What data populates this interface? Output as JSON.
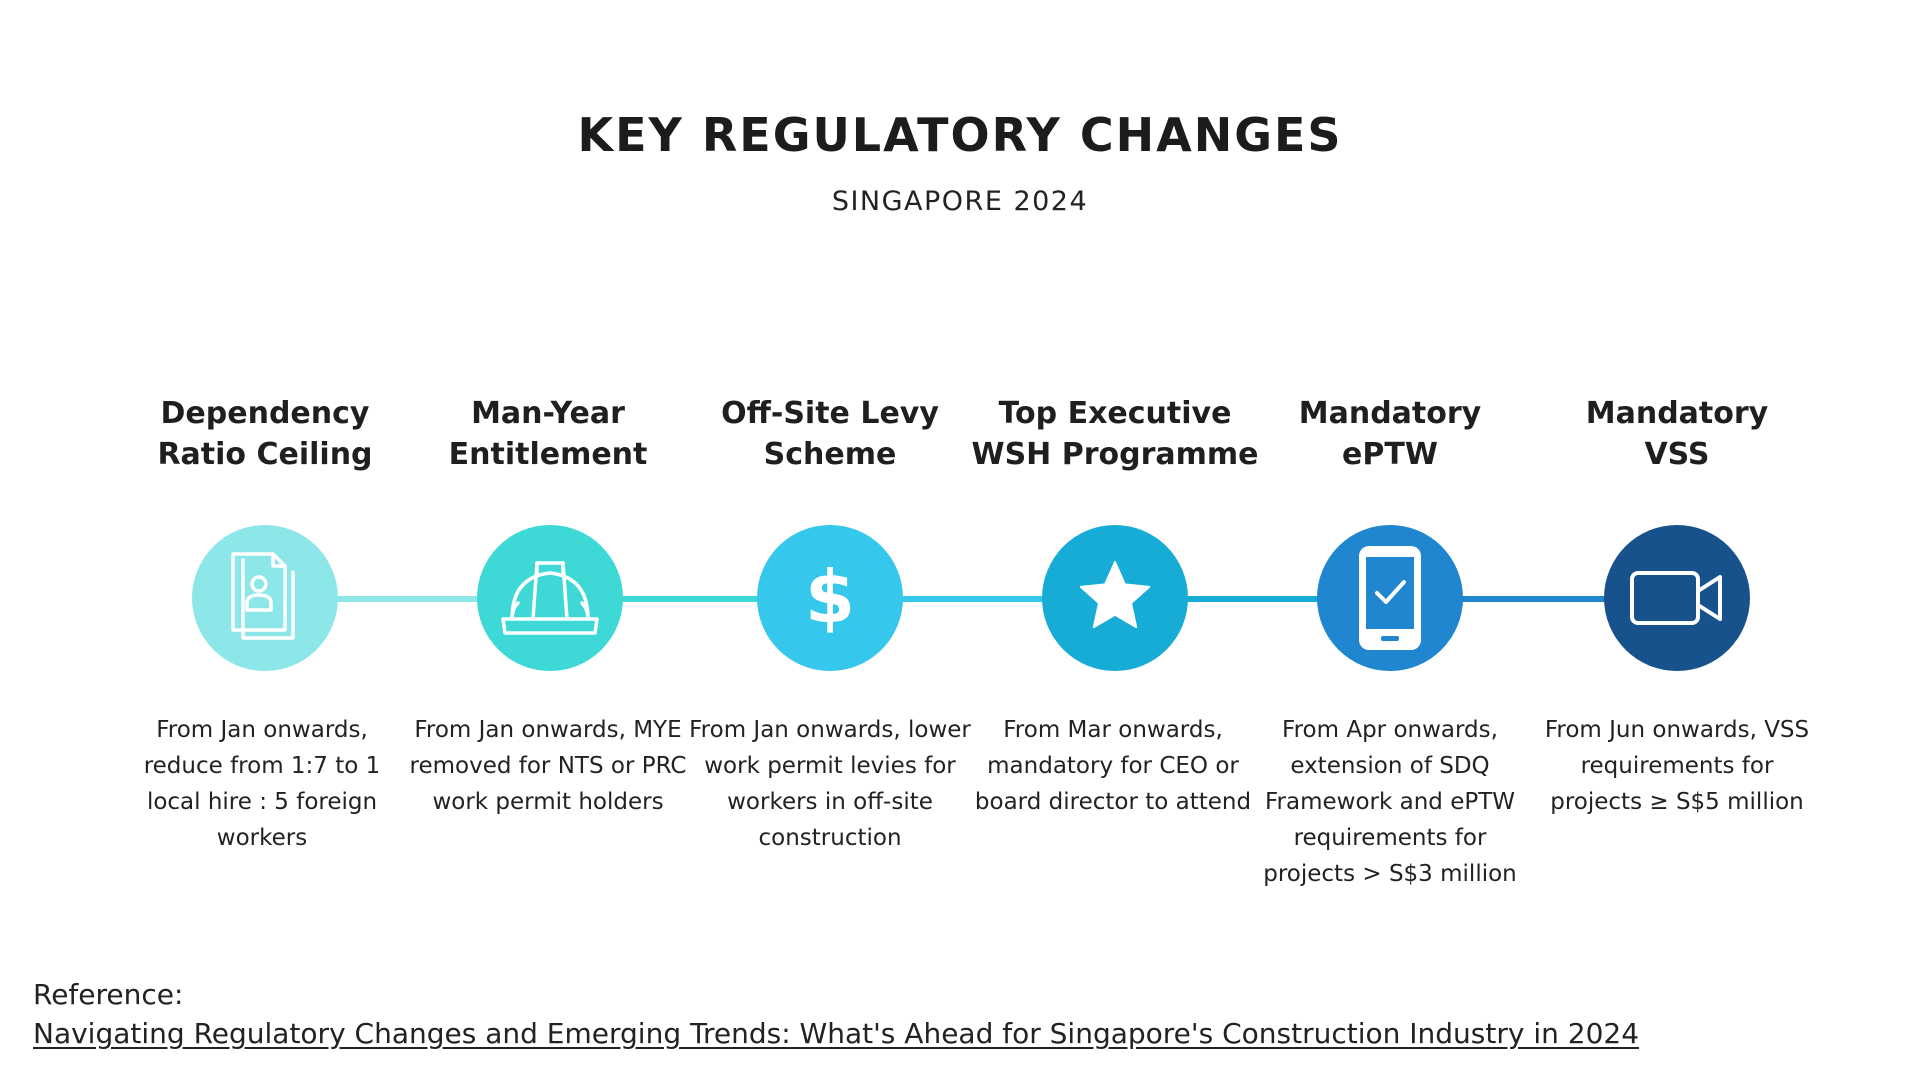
{
  "title": "KEY REGULATORY CHANGES",
  "subtitle": "SINGAPORE 2024",
  "colors": {
    "c1": "#8de6e8",
    "c2": "#3ed8d6",
    "c3": "#36c7ed",
    "c4": "#17acd6",
    "c5": "#1f86cf",
    "c6": "#17528c"
  },
  "steps": [
    {
      "heading": "Dependency\nRatio Ceiling",
      "icon": "document-person-icon",
      "description": "From Jan onwards, reduce from 1:7 to 1 local hire : 5 foreign workers"
    },
    {
      "heading": "Man-Year\nEntitlement",
      "icon": "hard-hat-icon",
      "description": "From Jan onwards, MYE removed for NTS or PRC work permit holders"
    },
    {
      "heading": "Off-Site Levy\nScheme",
      "icon": "dollar-icon",
      "description": "From Jan onwards, lower work permit levies for workers in off-site construction"
    },
    {
      "heading": "Top Executive\nWSH Programme",
      "icon": "star-icon",
      "description": "From Mar onwards, mandatory for CEO or board director to attend"
    },
    {
      "heading": "Mandatory\nePTW",
      "icon": "smartphone-check-icon",
      "description": "From Apr onwards, extension of SDQ Framework and ePTW requirements for projects > S$3 million"
    },
    {
      "heading": "Mandatory\nVSS",
      "icon": "video-camera-icon",
      "description": "From Jun onwards, VSS requirements for projects ≥ S$5 million"
    }
  ],
  "reference": {
    "label": "Reference:",
    "link_text": "Navigating Regulatory Changes and Emerging Trends: What's Ahead for Singapore's Construction Industry in 2024"
  }
}
